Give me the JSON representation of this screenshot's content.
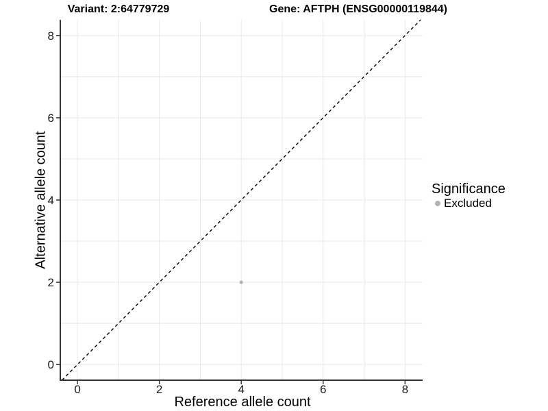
{
  "chart_data": {
    "type": "scatter",
    "title_left": "Variant: 2:64779729",
    "title_right": "Gene: AFTPH (ENSG00000119844)",
    "xlabel": "Reference allele count",
    "ylabel": "Alternative allele count",
    "xlim": [
      -0.42,
      8.43
    ],
    "ylim": [
      -0.38,
      8.38
    ],
    "x_ticks": [
      0,
      2,
      4,
      6,
      8
    ],
    "y_ticks": [
      0,
      2,
      4,
      6,
      8
    ],
    "grid_values": [
      0,
      1,
      2,
      3,
      4,
      5,
      6,
      7,
      8
    ],
    "grid_on": true,
    "identity_line": {
      "style": "dashed",
      "color": "#000000",
      "slope": 1,
      "intercept": 0
    },
    "series": [
      {
        "name": "Excluded",
        "color": "#b3b3b3",
        "marker": "dot",
        "points": [
          [
            4,
            2
          ]
        ]
      }
    ],
    "legend_position": "right"
  },
  "legend": {
    "title": "Significance",
    "items": [
      {
        "label": "Excluded",
        "color": "#b3b3b3"
      }
    ]
  },
  "colors": {
    "background": "#ffffff",
    "axis_line": "#333333",
    "tick_mark": "#333333",
    "tick_text": "#1a1a1a",
    "grid": "#e8e8e8",
    "point": "#b3b3b3",
    "dashed_line": "#000000"
  }
}
